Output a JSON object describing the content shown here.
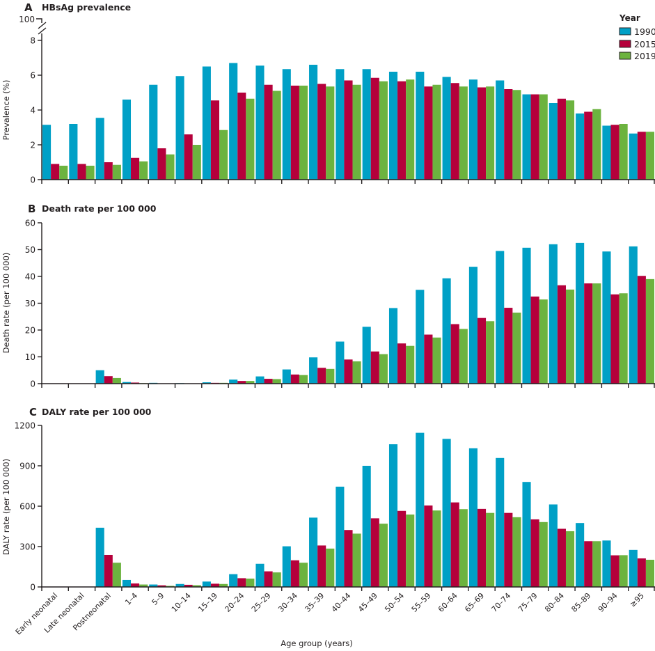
{
  "chart_data": {
    "type": "bar",
    "categories": [
      "Early neonatal",
      "Late neonatal",
      "Postneonatal",
      "1–4",
      "5–9",
      "10–14",
      "15–19",
      "20–24",
      "25–29",
      "30–34",
      "35–39",
      "40–44",
      "45–49",
      "50–54",
      "55–59",
      "60–64",
      "65–69",
      "70–74",
      "75–79",
      "80–84",
      "85–89",
      "90–94",
      "≥95"
    ],
    "xlabel": "Age group (years)",
    "legend": {
      "title": "Year",
      "position": "top-right",
      "entries": [
        {
          "name": "1990",
          "color": "#00a0c6"
        },
        {
          "name": "2015",
          "color": "#b5003b"
        },
        {
          "name": "2019",
          "color": "#6cb33f"
        }
      ]
    },
    "panels": [
      {
        "letter": "A",
        "title": "HBsAg prevalence",
        "ylabel": "Prevalence (%)",
        "ylim": [
          0,
          8
        ],
        "yticks": [
          0,
          2,
          4,
          6,
          8
        ],
        "axis_break_label": "100",
        "series": [
          {
            "name": "1990",
            "values": [
              3.15,
              3.2,
              3.55,
              4.6,
              5.45,
              5.95,
              6.5,
              6.7,
              6.55,
              6.35,
              6.6,
              6.35,
              6.35,
              6.2,
              6.2,
              5.9,
              5.75,
              5.7,
              4.9,
              4.4,
              3.8,
              3.1,
              2.65
            ]
          },
          {
            "name": "2015",
            "values": [
              0.9,
              0.9,
              1.0,
              1.25,
              1.8,
              2.6,
              4.55,
              5.0,
              5.45,
              5.4,
              5.5,
              5.7,
              5.85,
              5.65,
              5.35,
              5.55,
              5.3,
              5.2,
              4.9,
              4.65,
              3.9,
              3.15,
              2.75
            ]
          },
          {
            "name": "2019",
            "values": [
              0.8,
              0.8,
              0.85,
              1.05,
              1.45,
              2.0,
              2.85,
              4.65,
              5.1,
              5.4,
              5.35,
              5.45,
              5.65,
              5.75,
              5.45,
              5.35,
              5.35,
              5.15,
              4.9,
              4.55,
              4.05,
              3.2,
              2.75
            ]
          }
        ]
      },
      {
        "letter": "B",
        "title": "Death rate per 100 000",
        "ylabel": "Death rate (per 100 000)",
        "ylim": [
          0,
          60
        ],
        "yticks": [
          0,
          10,
          20,
          30,
          40,
          50,
          60
        ],
        "series": [
          {
            "name": "1990",
            "values": [
              0,
              0,
              5.0,
              0.6,
              0.3,
              0.2,
              0.5,
              1.5,
              2.7,
              5.3,
              9.8,
              15.7,
              21.2,
              28.2,
              35.0,
              39.3,
              43.6,
              49.5,
              50.7,
              52.0,
              52.5,
              49.3,
              51.2
            ]
          },
          {
            "name": "2015",
            "values": [
              0,
              0,
              2.8,
              0.4,
              0.1,
              0.1,
              0.3,
              1.0,
              1.8,
              3.4,
              5.9,
              9.0,
              12.0,
              15.0,
              18.3,
              22.2,
              24.5,
              28.3,
              32.5,
              36.7,
              37.4,
              33.3,
              40.2
            ]
          },
          {
            "name": "2019",
            "values": [
              0,
              0,
              2.1,
              0.2,
              0.1,
              0.1,
              0.3,
              1.0,
              1.7,
              3.2,
              5.5,
              8.3,
              11.0,
              14.1,
              17.2,
              20.4,
              23.3,
              26.5,
              31.4,
              35.1,
              37.4,
              33.7,
              39.0
            ]
          }
        ]
      },
      {
        "letter": "C",
        "title": "DALY rate per 100 000",
        "ylabel": "DALY rate (per 100 000)",
        "ylim": [
          0,
          1200
        ],
        "yticks": [
          0,
          300,
          600,
          900,
          1200
        ],
        "series": [
          {
            "name": "1990",
            "values": [
              0,
              0,
              440,
              52,
              18,
              22,
              40,
              95,
              172,
              302,
              515,
              745,
              900,
              1060,
              1145,
              1100,
              1030,
              958,
              780,
              613,
              475,
              345,
              275
            ]
          },
          {
            "name": "2015",
            "values": [
              0,
              0,
              238,
              26,
              12,
              16,
              24,
              65,
              116,
              198,
              308,
              423,
              510,
              565,
              605,
              628,
              580,
              550,
              502,
              432,
              340,
              235,
              212
            ]
          },
          {
            "name": "2019",
            "values": [
              0,
              0,
              180,
              18,
              8,
              13,
              22,
              62,
              108,
              180,
              285,
              396,
              470,
              538,
              568,
              578,
              550,
              518,
              482,
              414,
              340,
              236,
              202
            ]
          }
        ]
      }
    ]
  }
}
